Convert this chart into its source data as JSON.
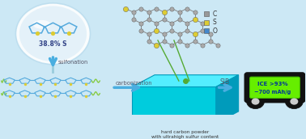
{
  "bg_color": "#cce8f5",
  "globe_text": "38.8% S",
  "sulfonation_label": "sulfonation",
  "carbonization_label": "carbonization",
  "sib_label": "SIB",
  "hard_carbon_label": "hard carbon powder\nwith ultrahigh sulfur content",
  "battery_text_line1": "ICE >93%",
  "battery_text_line2": "~700 mAh/g",
  "arrow_color": "#4aaee0",
  "legend_C": "C",
  "legend_S": "S",
  "legend_O": "O",
  "legend_C_color": "#999999",
  "legend_S_color": "#ddcc33",
  "legend_O_color": "#4488cc",
  "thiophene_color": "#55aadd",
  "sulfur_color": "#ddcc33",
  "chain_green": "#88cc44",
  "cube_front": "#00ccdd",
  "cube_top": "#55eeff",
  "cube_right": "#009bbb",
  "lattice_bond_color": "#888888",
  "lattice_C_color": "#aaaaaa",
  "lattice_S_color": "#ddcc33",
  "green_line_color": "#55aa33"
}
